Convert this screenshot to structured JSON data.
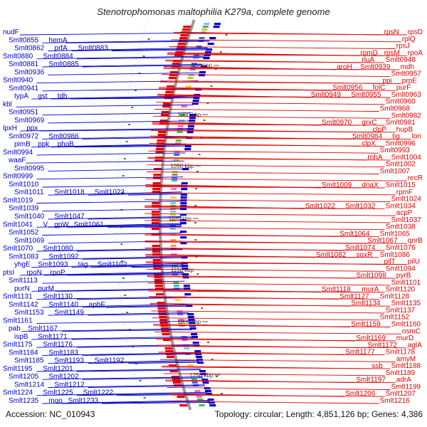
{
  "title": "Stenotrophomonas maltophilia K279a, complete genome",
  "footer": {
    "accession": "Accession: NC_010943",
    "topology": "Topology: circular; Length: 4,851,126 bp; Genes: 4,386"
  },
  "colors": {
    "forward": "#0000cc",
    "reverse": "#e00000",
    "backbone": "#9a9a9a",
    "tick": "#228b22",
    "text": "#111111"
  },
  "scale_ticks": [
    "950 kbp",
    "1000 kbp",
    "1050 kbp",
    "1100 kbp",
    "1150 kbp",
    "1200 kbp",
    "1250 kbp"
  ],
  "left_labels": [
    [
      "nudF"
    ],
    [
      "Smlt0855",
      "hemA"
    ],
    [
      "Smlt0862",
      "prfA",
      "Smlt0883"
    ],
    [
      "Smlt0880",
      "Smlt0884"
    ],
    [
      "Smlt0881",
      "Smlt0885"
    ],
    [
      "Smlt0936"
    ],
    [
      "Smlt0940"
    ],
    [
      "Smlt0941"
    ],
    [
      "typA",
      "gst",
      "tdh"
    ],
    [
      "kbl"
    ],
    [
      "Smlt0951"
    ],
    [
      "Smlt0969"
    ],
    [
      "lpxH",
      "ppx"
    ],
    [
      "Smlt0972",
      "Smlt0986"
    ],
    [
      "pimB",
      "ppk",
      "phoB"
    ],
    [
      "Smlt0994"
    ],
    [
      "waaF"
    ],
    [
      "Smlt0995"
    ],
    [
      "Smlt0999"
    ],
    [
      "Smlt1010"
    ],
    [
      "Smlt1011",
      "Smlt1018",
      "Smlt1023"
    ],
    [
      "Smlt1019"
    ],
    [
      "Smlt1039"
    ],
    [
      "Smlt1040",
      "Smlt1047"
    ],
    [
      "Smlt1041",
      "V",
      "gpW",
      "Smlt1061"
    ],
    [
      "Smlt1052"
    ],
    [
      "Smlt1069"
    ],
    [
      "Smlt1070",
      "Smlt1080"
    ],
    [
      "Smlt1083",
      "Smlt1092"
    ],
    [
      "yhgE",
      "Smlt1093",
      "tag",
      "Smlt1102"
    ],
    [
      "ptsI",
      "rpoN",
      "rpoP"
    ],
    [
      "Smlt1113"
    ],
    [
      "purN",
      "purM"
    ],
    [
      "Smlt1131",
      "Smlt1130"
    ],
    [
      "Smlt1142",
      "Smlt1140",
      "apbE"
    ],
    [
      "Smlt1153",
      "Smlt1149"
    ],
    [
      "Smlt1161"
    ],
    [
      "pab",
      "Smlt1167"
    ],
    [
      "ispB",
      "Smlt1171"
    ],
    [
      "Smlt1175",
      "Smlt1176"
    ],
    [
      "Smlt1184",
      "Smlt1183"
    ],
    [
      "Smlt1185",
      "Smlt1193",
      "Smlt1192"
    ],
    [
      "Smlt1195",
      "Smlt1201"
    ],
    [
      "Smlt1205",
      "Smlt1202"
    ],
    [
      "Smlt1214",
      "Smlt1212"
    ],
    [
      "Smlt1224",
      "Smlt1225",
      "Smlt1222"
    ],
    [
      "Smlt1235",
      "mqo",
      "Smlt1233"
    ]
  ],
  "right_labels": [
    [
      "rpsN",
      "rpsD"
    ],
    [
      "rplQ"
    ],
    [
      "rpsJ"
    ],
    [
      "rpmD",
      "rpsM",
      "rpoA"
    ],
    [
      "rluA",
      "Smlt0948"
    ],
    [
      "aroH",
      "Smlt0939",
      "mdh"
    ],
    [
      "Smlt0957"
    ],
    [
      "ppi",
      "prpE"
    ],
    [
      "Smlt0956",
      "folC",
      "purF"
    ],
    [
      "Smlt0949",
      "Smlt0955",
      "Smlt0963"
    ],
    [
      "Smlt0960"
    ],
    [
      "Smlt0968"
    ],
    [
      "Smlt0982"
    ],
    [
      "Smlt0970",
      "grxC",
      "Smlt0981"
    ],
    [
      "clpP",
      "hupB"
    ],
    [
      "Smlt0984",
      "tig",
      "lon"
    ],
    [
      "clpX",
      "Smlt0996"
    ],
    [
      "Smlt0993"
    ],
    [
      "rnhA",
      "Smlt1004"
    ],
    [
      "Smlt1002"
    ],
    [
      "Smlt1007"
    ],
    [
      "recR"
    ],
    [
      "Smlt1009",
      "dnaX",
      "Smlt1015"
    ],
    [
      "rpmF"
    ],
    [
      "Smlt1024"
    ],
    [
      "Smlt1022",
      "Smlt1032",
      "Smlt1034"
    ],
    [
      "acpP"
    ],
    [
      "Smlt1037"
    ],
    [
      "Smlt1038"
    ],
    [
      "Smlt1064",
      "Smlt1065"
    ],
    [
      "Smlt1067",
      "qnrB"
    ],
    [
      "Smlt1074",
      "Smlt1076"
    ],
    [
      "Smlt1082",
      "soxR",
      "Smlt1086"
    ],
    [
      "pilT",
      "pilU"
    ],
    [
      "Smlt1094"
    ],
    [
      "Smlt1098",
      "pyrB"
    ],
    [
      "Smlt1101"
    ],
    [
      "Smlt1118",
      "murA",
      "Smlt1120"
    ],
    [
      "Smlt1127",
      "Smlt1128"
    ],
    [
      "Smlt1134",
      "Smlt1135"
    ],
    [
      "Smlt1137"
    ],
    [
      "Smlt1152"
    ],
    [
      "Smlt1159",
      "Smlt1160"
    ],
    [
      "osmC"
    ],
    [
      "Smlt1169",
      "murD"
    ],
    [
      "Smlt1172",
      "aglA"
    ],
    [
      "Smlt1177",
      "Smlt1178"
    ],
    [
      "amyM"
    ],
    [
      "ssb",
      "Smlt1188"
    ],
    [
      "Smlt1189"
    ],
    [
      "Smlt1197",
      "adrA"
    ],
    [
      "Smlt1199"
    ],
    [
      "Smlt1206",
      "Smlt1207"
    ],
    [
      "Smlt1216"
    ]
  ]
}
